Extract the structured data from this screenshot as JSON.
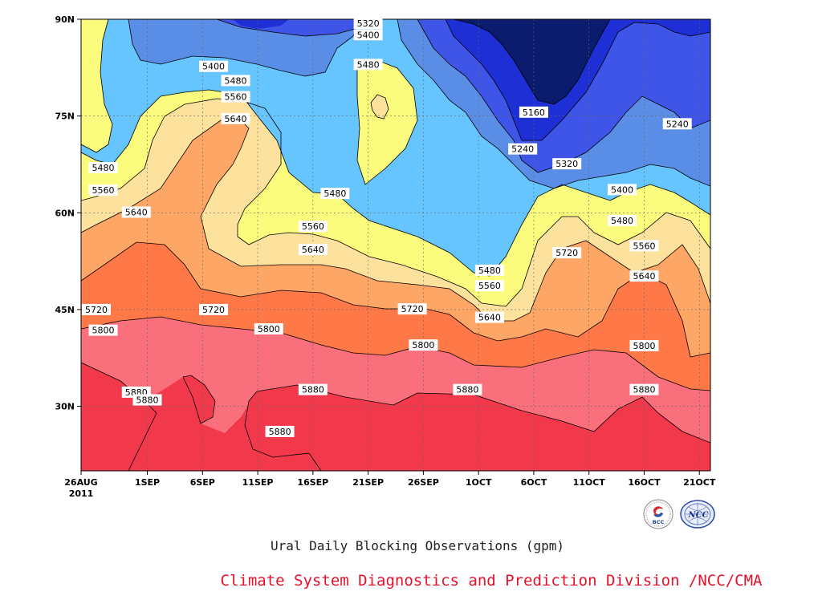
{
  "chart_data": {
    "type": "contour",
    "title": "Ural Daily Blocking Observations (gpm)",
    "credit": "Climate System Diagnostics and Prediction Division /NCC/CMA",
    "x_axis": {
      "ticks": [
        "26AUG",
        "1SEP",
        "6SEP",
        "11SEP",
        "16SEP",
        "21SEP",
        "26SEP",
        "1OCT",
        "6OCT",
        "11OCT",
        "16OCT",
        "21OCT"
      ],
      "year_label": "2011",
      "range": [
        "2011-08-26",
        "2011-10-22"
      ]
    },
    "y_axis": {
      "ticks": [
        "90N",
        "75N",
        "60N",
        "45N",
        "30N"
      ],
      "tick_values": [
        90,
        75,
        60,
        45,
        30
      ],
      "range": [
        20,
        90
      ]
    },
    "grid": true,
    "contour_levels": [
      5160,
      5240,
      5320,
      5400,
      5480,
      5560,
      5640,
      5720,
      5800,
      5880
    ],
    "level_colors": [
      "#0b1c6e",
      "#1e2fd6",
      "#3f55e8",
      "#5a8ee6",
      "#66c4ff",
      "#fbfb7e",
      "#fde29e",
      "#fea666",
      "#ff7848",
      "#f9707c",
      "#f2394c"
    ],
    "contour_labels": [
      {
        "value": "5320",
        "date": "2011-09-21",
        "lat": 89.6
      },
      {
        "value": "5400",
        "date": "2011-09-21",
        "lat": 87.6
      },
      {
        "value": "5480",
        "date": "2011-09-21",
        "lat": 83.0
      },
      {
        "value": "5400",
        "date": "2011-09-07",
        "lat": 82.7
      },
      {
        "value": "5480",
        "date": "2011-09-09",
        "lat": 80.5
      },
      {
        "value": "5560",
        "date": "2011-09-09",
        "lat": 78.0
      },
      {
        "value": "5640",
        "date": "2011-09-09",
        "lat": 74.6
      },
      {
        "value": "5160",
        "date": "2011-10-06",
        "lat": 75.6
      },
      {
        "value": "5240",
        "date": "2011-10-19",
        "lat": 73.8
      },
      {
        "value": "5240",
        "date": "2011-10-05",
        "lat": 69.9
      },
      {
        "value": "5320",
        "date": "2011-10-09",
        "lat": 67.6
      },
      {
        "value": "5400",
        "date": "2011-10-14",
        "lat": 63.6
      },
      {
        "value": "5480",
        "date": "2011-08-28",
        "lat": 67.0
      },
      {
        "value": "5560",
        "date": "2011-08-28",
        "lat": 63.5
      },
      {
        "value": "5640",
        "date": "2011-08-31",
        "lat": 60.1
      },
      {
        "value": "5480",
        "date": "2011-09-18",
        "lat": 63.0
      },
      {
        "value": "5480",
        "date": "2011-10-14",
        "lat": 58.8
      },
      {
        "value": "5560",
        "date": "2011-09-16",
        "lat": 57.9
      },
      {
        "value": "5640",
        "date": "2011-09-16",
        "lat": 54.3
      },
      {
        "value": "5560",
        "date": "2011-10-16",
        "lat": 54.9
      },
      {
        "value": "5720",
        "date": "2011-10-09",
        "lat": 53.8
      },
      {
        "value": "5480",
        "date": "2011-10-02",
        "lat": 51.1
      },
      {
        "value": "5640",
        "date": "2011-10-16",
        "lat": 50.2
      },
      {
        "value": "5560",
        "date": "2011-10-02",
        "lat": 48.7
      },
      {
        "value": "5720",
        "date": "2011-08-26",
        "lat": 45.0
      },
      {
        "value": "5720",
        "date": "2011-09-07",
        "lat": 45.0
      },
      {
        "value": "5720",
        "date": "2011-09-25",
        "lat": 45.1
      },
      {
        "value": "5640",
        "date": "2011-10-02",
        "lat": 43.8
      },
      {
        "value": "5800",
        "date": "2011-08-28",
        "lat": 41.8
      },
      {
        "value": "5800",
        "date": "2011-09-12",
        "lat": 42.0
      },
      {
        "value": "5800",
        "date": "2011-09-26",
        "lat": 39.5
      },
      {
        "value": "5800",
        "date": "2011-10-16",
        "lat": 39.4
      },
      {
        "value": "5880",
        "date": "2011-08-31",
        "lat": 32.2
      },
      {
        "value": "5880",
        "date": "2011-09-01",
        "lat": 31.0
      },
      {
        "value": "5880",
        "date": "2011-09-16",
        "lat": 32.6
      },
      {
        "value": "5880",
        "date": "2011-09-30",
        "lat": 32.6
      },
      {
        "value": "5880",
        "date": "2011-10-16",
        "lat": 32.6
      },
      {
        "value": "5880",
        "date": "2011-09-13",
        "lat": 26.1
      }
    ],
    "logos": [
      {
        "name": "bcc-logo",
        "text": "BCC"
      },
      {
        "name": "ncc-logo",
        "text": "NCC"
      }
    ]
  }
}
